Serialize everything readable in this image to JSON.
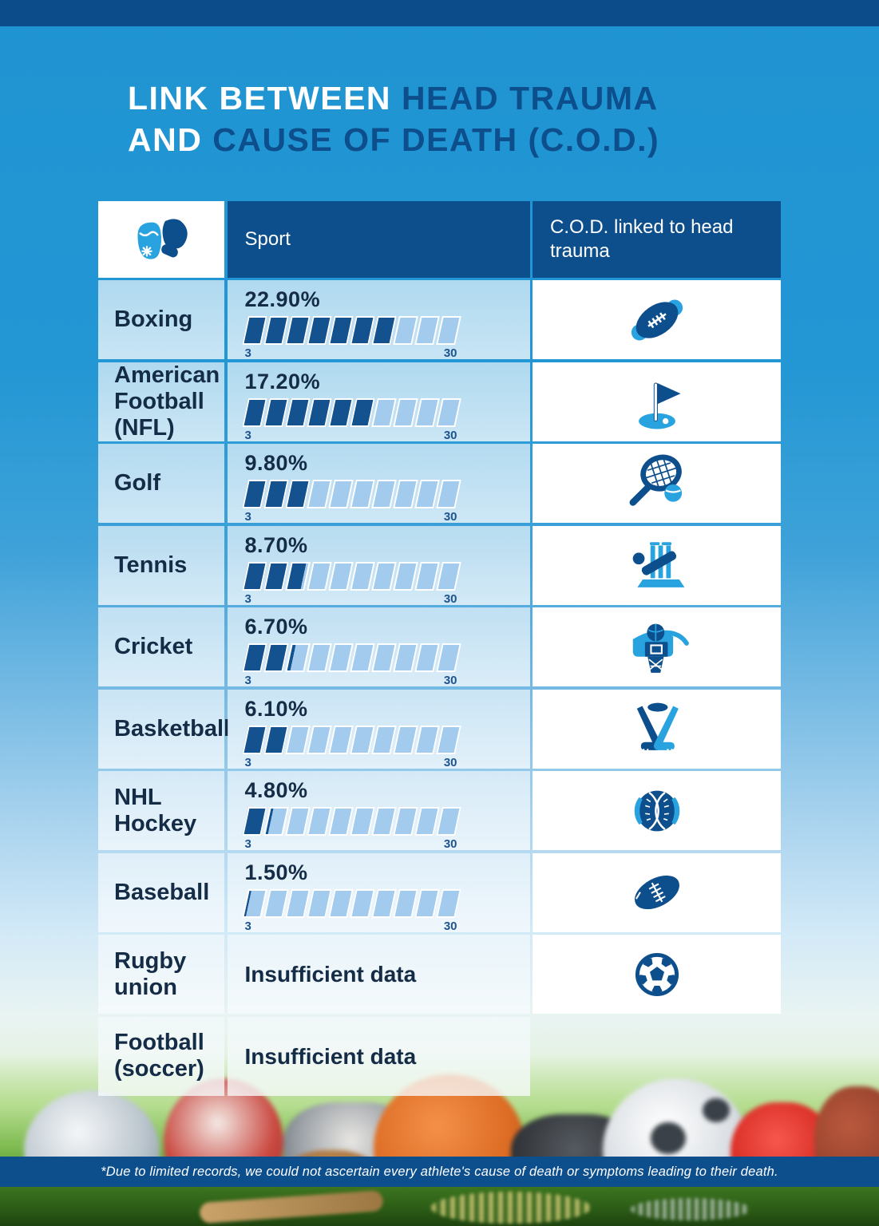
{
  "title": {
    "line1_white": "LINK BETWEEN",
    "line1_blue": "HEAD TRAUMA",
    "line2_white": "AND",
    "line2_blue": "CAUSE OF DEATH (C.O.D.)"
  },
  "table": {
    "headers": {
      "sport": "Sport",
      "value": "C.O.D. linked to head trauma"
    },
    "scale": {
      "min": "3",
      "max": "30"
    },
    "rows": [
      {
        "sport": "Boxing",
        "icon": "boxing-gloves-icon",
        "value_label": "22.90%",
        "bar": {
          "full": 7,
          "partial": 0
        }
      },
      {
        "sport": "American Football (NFL)",
        "icon": "american-football-icon",
        "value_label": "17.20%",
        "bar": {
          "full": 6,
          "partial": 0
        }
      },
      {
        "sport": "Golf",
        "icon": "golf-flag-icon",
        "value_label": "9.80%",
        "bar": {
          "full": 3,
          "partial": 0
        }
      },
      {
        "sport": "Tennis",
        "icon": "tennis-racket-icon",
        "value_label": "8.70%",
        "bar": {
          "full": 2,
          "partial": 0.85
        }
      },
      {
        "sport": "Cricket",
        "icon": "cricket-icon",
        "value_label": "6.70%",
        "bar": {
          "full": 2,
          "partial": 0.2
        }
      },
      {
        "sport": "Basketball",
        "icon": "basketball-hoop-icon",
        "value_label": "6.10%",
        "bar": {
          "full": 2,
          "partial": 0
        }
      },
      {
        "sport": "NHL Hockey",
        "icon": "hockey-sticks-icon",
        "value_label": "4.80%",
        "bar": {
          "full": 1,
          "partial": 0.15
        }
      },
      {
        "sport": "Baseball",
        "icon": "baseball-icon",
        "value_label": "1.50%",
        "bar": {
          "full": 0,
          "partial": 0.12
        }
      },
      {
        "sport": "Rugby union",
        "icon": "rugby-ball-icon",
        "value_label": "Insufficient data",
        "bar": null
      },
      {
        "sport": "Football (soccer)",
        "icon": "soccer-ball-icon",
        "value_label": "Insufficient data",
        "bar": null
      }
    ]
  },
  "footer": {
    "note": "*Due to limited records, we could not ascertain every athlete's  cause of death or symptoms leading to their death."
  },
  "colors": {
    "page_blue": "#2397d4",
    "header_dark_blue": "#0d4e8c",
    "navy_text": "#152c47",
    "bar_dark": "#14518f",
    "bar_light": "#a2cbee",
    "icon_light_blue": "#29a3e0",
    "icon_dark_blue": "#0d4e8c"
  },
  "chart_data": {
    "type": "bar",
    "title": "LINK BETWEEN HEAD TRAUMA AND CAUSE OF DEATH (C.O.D.)",
    "categories": [
      "Boxing",
      "American Football (NFL)",
      "Golf",
      "Tennis",
      "Cricket",
      "Basketball",
      "NHL Hockey",
      "Baseball",
      "Rugby union",
      "Football (soccer)"
    ],
    "values": [
      22.9,
      17.2,
      9.8,
      8.7,
      6.7,
      6.1,
      4.8,
      1.5,
      null,
      null
    ],
    "value_labels": [
      "22.90%",
      "17.20%",
      "9.80%",
      "8.70%",
      "6.70%",
      "6.10%",
      "4.80%",
      "1.50%",
      "Insufficient data",
      "Insufficient data"
    ],
    "xlabel": "Sport",
    "ylabel": "C.O.D. linked to head trauma (%)",
    "axis_range": [
      3,
      30
    ],
    "segments_per_bar": 10,
    "segment_value": 3,
    "legend_position": "none",
    "grid": false
  }
}
